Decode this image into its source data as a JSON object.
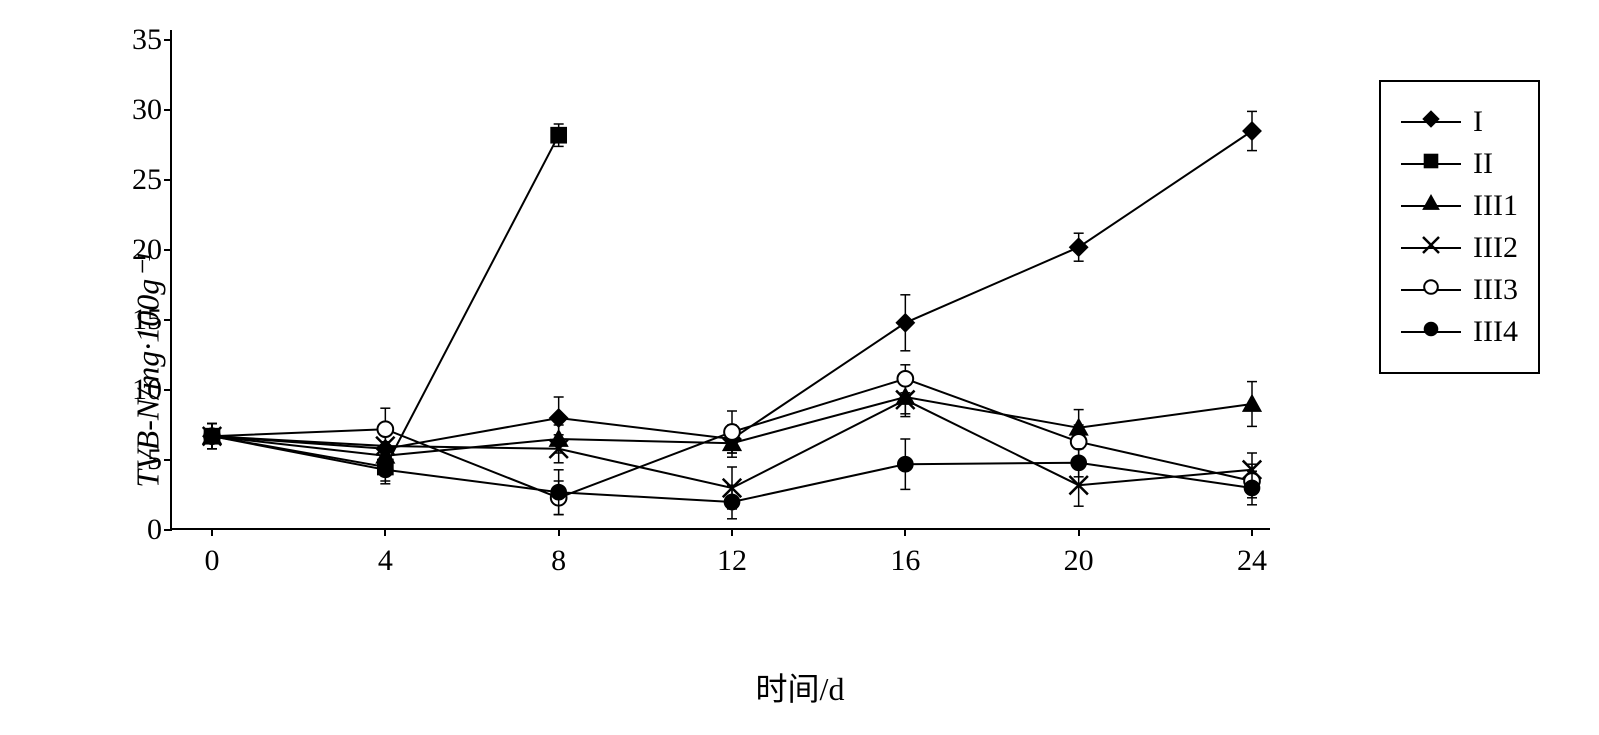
{
  "chart": {
    "type": "line",
    "y_label": "TVB-N/mg·100g⁻¹",
    "x_label": "时间/d",
    "x_values": [
      0,
      4,
      8,
      12,
      16,
      20,
      24
    ],
    "y_ticks": [
      0,
      5,
      10,
      15,
      20,
      25,
      30,
      35
    ],
    "xlim": [
      0,
      24
    ],
    "ylim": [
      0,
      35
    ],
    "x_tick_step": 4,
    "y_tick_step": 5,
    "background_color": "#ffffff",
    "axis_color": "#000000",
    "line_color": "#000000",
    "line_width": 2,
    "error_cap_width": 10,
    "label_fontsize": 32,
    "tick_fontsize": 30,
    "legend_fontsize": 30,
    "marker_size": 12,
    "series": [
      {
        "name": "I",
        "marker": "diamond-filled",
        "x": [
          0,
          4,
          8,
          12,
          16,
          20,
          24
        ],
        "y": [
          6.7,
          5.8,
          8.0,
          6.5,
          14.8,
          20.2,
          28.5
        ],
        "err": [
          0.9,
          1.0,
          1.5,
          1.0,
          2.0,
          1.0,
          1.4
        ]
      },
      {
        "name": "II",
        "marker": "square-filled",
        "x": [
          0,
          4,
          8
        ],
        "y": [
          6.7,
          4.5,
          28.2
        ],
        "err": [
          0.9,
          1.0,
          0.8
        ]
      },
      {
        "name": "III1",
        "marker": "triangle-filled",
        "x": [
          0,
          4,
          8,
          12,
          16,
          20,
          24
        ],
        "y": [
          6.7,
          5.3,
          6.5,
          6.2,
          9.5,
          7.3,
          9.0
        ],
        "err": [
          0.9,
          1.0,
          1.0,
          1.0,
          1.2,
          1.3,
          1.6
        ]
      },
      {
        "name": "III2",
        "marker": "x",
        "x": [
          0,
          4,
          8,
          12,
          16,
          20,
          24
        ],
        "y": [
          6.7,
          6.0,
          5.8,
          3.0,
          9.3,
          3.2,
          4.3
        ],
        "err": [
          0.9,
          1.2,
          1.0,
          1.5,
          1.2,
          1.5,
          1.2
        ]
      },
      {
        "name": "III3",
        "marker": "circle-open",
        "x": [
          0,
          4,
          8,
          12,
          16,
          20,
          24
        ],
        "y": [
          6.7,
          7.2,
          2.3,
          7.0,
          10.8,
          6.3,
          3.5
        ],
        "err": [
          0.9,
          1.5,
          1.2,
          1.5,
          1.0,
          1.2,
          1.2
        ]
      },
      {
        "name": "III4",
        "marker": "circle-filled",
        "x": [
          0,
          4,
          8,
          12,
          16,
          20,
          24
        ],
        "y": [
          6.7,
          4.3,
          2.7,
          2.0,
          4.7,
          4.8,
          3.0
        ],
        "err": [
          0.9,
          1.0,
          1.6,
          1.2,
          1.8,
          1.0,
          1.2
        ]
      }
    ],
    "legend_labels": [
      "I",
      "II",
      "III1",
      "III2",
      "III3",
      "III4"
    ]
  }
}
